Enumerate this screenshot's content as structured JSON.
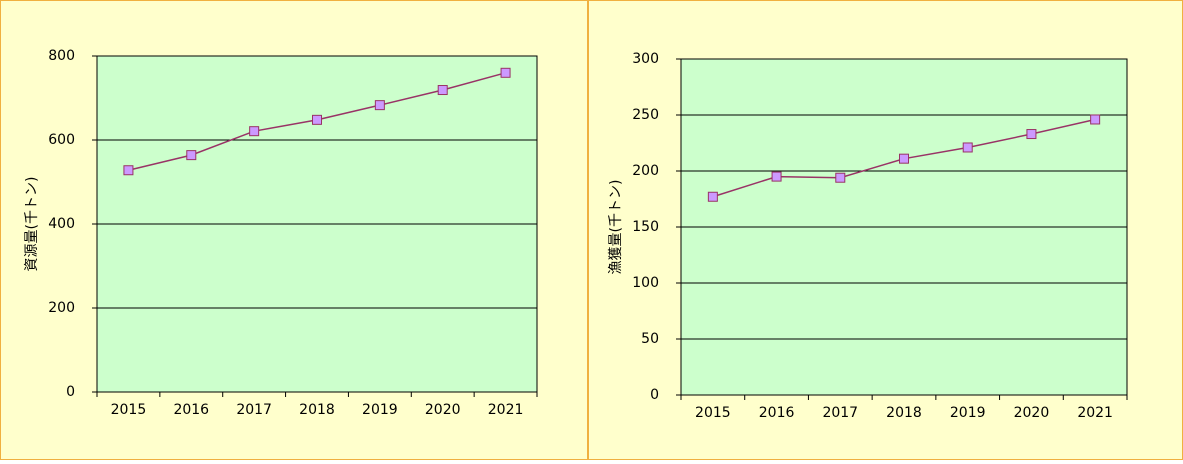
{
  "chart_data": [
    {
      "type": "line",
      "y_label": "資源量(千トン)",
      "categories": [
        "2015",
        "2016",
        "2017",
        "2018",
        "2019",
        "2020",
        "2021"
      ],
      "series": [
        {
          "color": "#993366",
          "marker_color": "#cc99ff",
          "values": [
            528,
            564,
            621,
            648,
            683,
            719,
            760
          ]
        }
      ],
      "ylim": [
        0,
        800
      ],
      "yticks": [
        0,
        200,
        400,
        600,
        800
      ],
      "grid": true,
      "plot_color": "#ccffcc"
    },
    {
      "type": "line",
      "y_label": "漁獲量(千トン)",
      "categories": [
        "2015",
        "2016",
        "2017",
        "2018",
        "2019",
        "2020",
        "2021"
      ],
      "series": [
        {
          "color": "#993366",
          "marker_color": "#cc99ff",
          "values": [
            177,
            195,
            194,
            211,
            221,
            233,
            246
          ]
        }
      ],
      "ylim": [
        0,
        300
      ],
      "yticks": [
        0,
        50,
        100,
        150,
        200,
        250,
        300
      ],
      "grid": true,
      "plot_color": "#ccffcc"
    }
  ]
}
